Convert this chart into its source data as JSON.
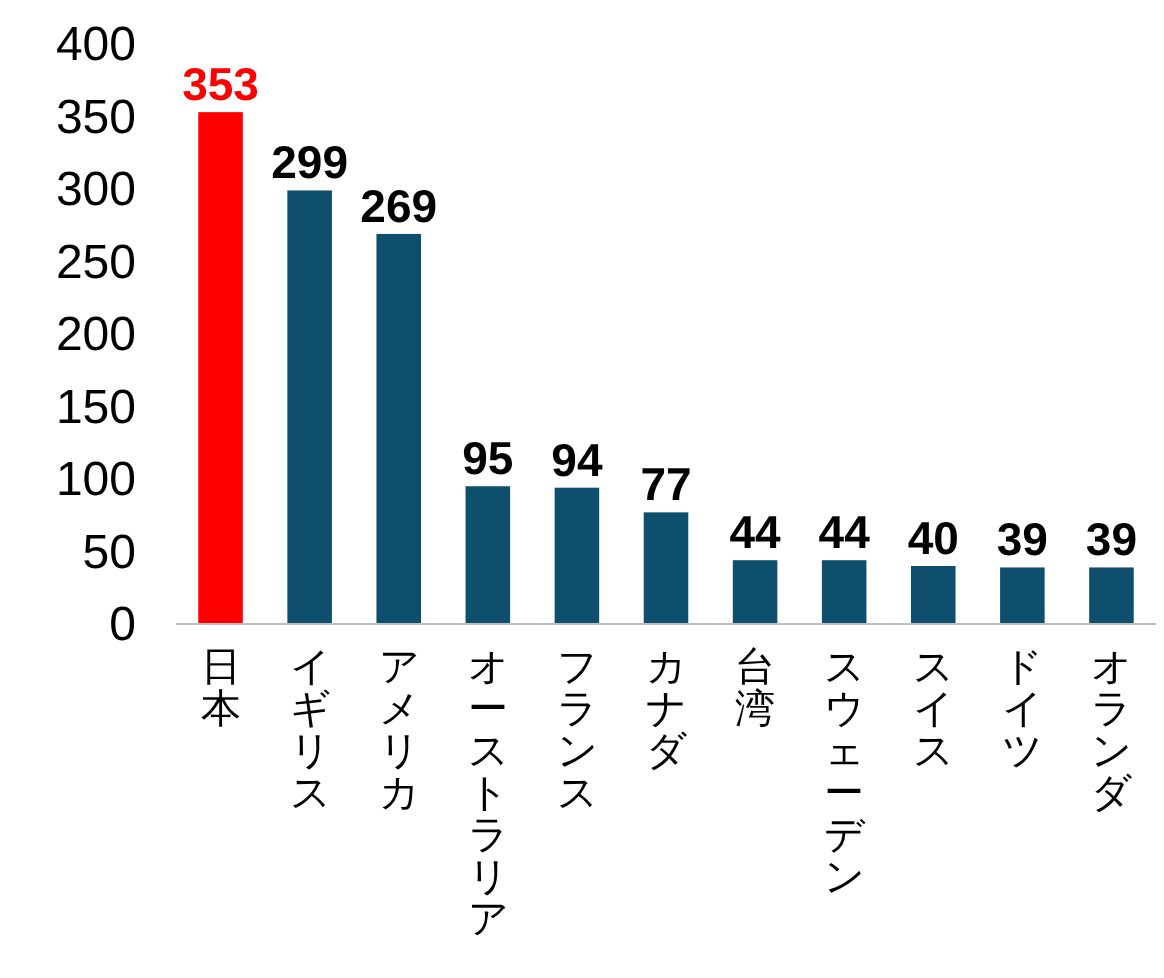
{
  "chart_data": {
    "type": "bar",
    "categories": [
      "日本",
      "イギリス",
      "アメリカ",
      "オーストラリア",
      "フランス",
      "カナダ",
      "台湾",
      "スウェーデン",
      "スイス",
      "ドイツ",
      "オランダ"
    ],
    "values": [
      353,
      299,
      269,
      95,
      94,
      77,
      44,
      44,
      40,
      39,
      39
    ],
    "colors": [
      "#ff0000",
      "#0e4f6e",
      "#0e4f6e",
      "#0e4f6e",
      "#0e4f6e",
      "#0e4f6e",
      "#0e4f6e",
      "#0e4f6e",
      "#0e4f6e",
      "#0e4f6e",
      "#0e4f6e"
    ],
    "ylim": [
      0,
      400
    ],
    "yticks": [
      0,
      50,
      100,
      150,
      200,
      250,
      300,
      350,
      400
    ],
    "data_labels": true,
    "grid": false
  }
}
